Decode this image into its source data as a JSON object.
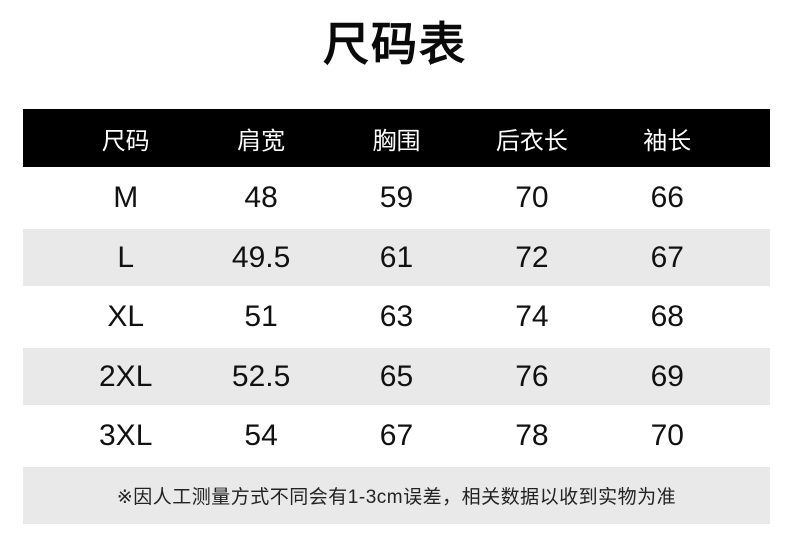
{
  "title": "尺码表",
  "table": {
    "headers": [
      "尺码",
      "肩宽",
      "胸围",
      "后衣长",
      "袖长"
    ],
    "rows": [
      [
        "M",
        "48",
        "59",
        "70",
        "66"
      ],
      [
        "L",
        "49.5",
        "61",
        "72",
        "67"
      ],
      [
        "XL",
        "51",
        "63",
        "74",
        "68"
      ],
      [
        "2XL",
        "52.5",
        "65",
        "76",
        "69"
      ],
      [
        "3XL",
        "54",
        "67",
        "78",
        "70"
      ]
    ]
  },
  "note": "※因人工测量方式不同会有1-3cm误差，相关数据以收到实物为准",
  "colors": {
    "page_bg": "#ffffff",
    "header_bg": "#000000",
    "header_text": "#ffffff",
    "stripe_bg": "#e9e9e9",
    "body_text": "#111111"
  }
}
